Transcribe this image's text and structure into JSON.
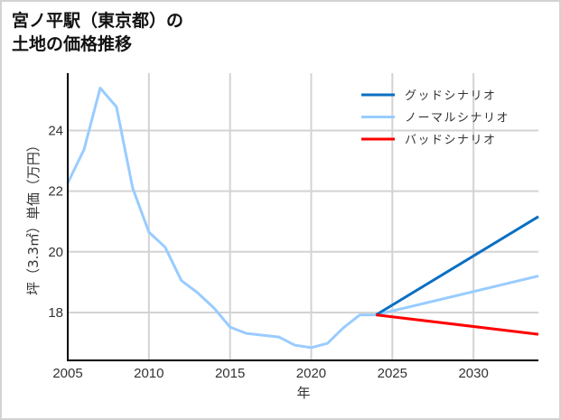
{
  "title": {
    "line1": "宮ノ平駅（東京都）の",
    "line2": "土地の価格推移"
  },
  "colors": {
    "good": "#0a6fc2",
    "normal": "#99ccff",
    "bad": "#ff0000",
    "grid": "#d3d3d3",
    "axis": "#000000",
    "border": "#d3d3d3"
  },
  "chart_data": {
    "type": "line",
    "title": "宮ノ平駅（東京都）の土地の価格推移",
    "xlabel": "年",
    "ylabel": "坪（3.3㎡）単価（万円）",
    "xlim": [
      2005,
      2034
    ],
    "ylim": [
      16.42,
      25.89
    ],
    "xticks": [
      2005,
      2010,
      2015,
      2020,
      2025,
      2030
    ],
    "yticks": [
      18,
      20,
      22,
      24
    ],
    "grid": true,
    "legend_position": "upper right",
    "legend": [
      "グッドシナリオ",
      "ノーマルシナリオ",
      "バッドシナリオ"
    ],
    "series": [
      {
        "name": "ノーマルシナリオ",
        "color": "#99ccff",
        "x": [
          2005,
          2006,
          2007,
          2008,
          2009,
          2010,
          2011,
          2012,
          2013,
          2014,
          2015,
          2016,
          2017,
          2018,
          2019,
          2020,
          2021,
          2022,
          2023,
          2024,
          2034
        ],
        "values": [
          22.27,
          23.37,
          25.4,
          24.78,
          22.1,
          20.65,
          20.15,
          19.05,
          18.65,
          18.15,
          17.52,
          17.31,
          17.25,
          17.19,
          16.92,
          16.84,
          16.98,
          17.5,
          17.92,
          17.92,
          19.2
        ]
      },
      {
        "name": "グッドシナリオ",
        "color": "#0a6fc2",
        "x": [
          2024,
          2034
        ],
        "values": [
          17.92,
          21.16
        ]
      },
      {
        "name": "バッドシナリオ",
        "color": "#ff0000",
        "x": [
          2024,
          2034
        ],
        "values": [
          17.92,
          17.28
        ]
      }
    ]
  }
}
